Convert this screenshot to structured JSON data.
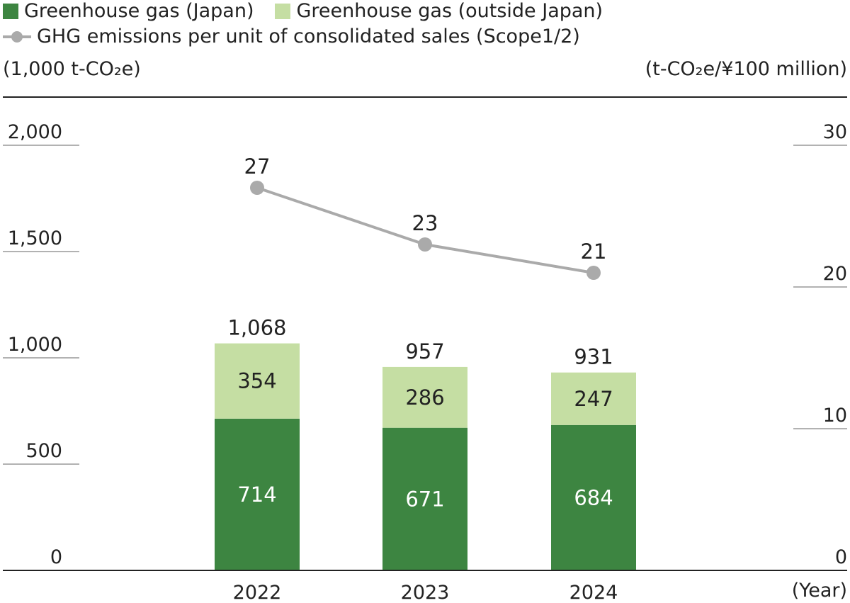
{
  "legend": {
    "japan_label": "Greenhouse gas (Japan)",
    "outside_label": "Greenhouse gas (outside Japan)",
    "line_label": "GHG emissions per unit of consolidated sales (Scope1/2)"
  },
  "units": {
    "left": "(1,000 t-CO₂e)",
    "right": "(t-CO₂e/¥100 million)"
  },
  "colors": {
    "japan": "#3d8541",
    "outside": "#c5dea3",
    "line": "#aaaaaa",
    "axis": "#222222",
    "grid": "#999999"
  },
  "chart_data": {
    "type": "bar",
    "categories": [
      "2022",
      "2023",
      "2024"
    ],
    "xlabel": "(Year)",
    "ylabel_left": "(1,000 t-CO₂e)",
    "ylabel_right": "(t-CO₂e/¥100 million)",
    "ylim_left": [
      0,
      2000
    ],
    "yticks_left": [
      0,
      500,
      1000,
      1500,
      2000
    ],
    "ylim_right": [
      0,
      30
    ],
    "yticks_right": [
      0,
      10,
      20,
      30
    ],
    "series": [
      {
        "name": "Greenhouse gas (Japan)",
        "type": "bar",
        "stack": "ghg",
        "axis": "left",
        "values": [
          714,
          671,
          684
        ]
      },
      {
        "name": "Greenhouse gas (outside Japan)",
        "type": "bar",
        "stack": "ghg",
        "axis": "left",
        "values": [
          354,
          286,
          247
        ]
      },
      {
        "name": "GHG emissions per unit of consolidated sales (Scope1/2)",
        "type": "line",
        "axis": "right",
        "values": [
          27,
          23,
          21
        ]
      }
    ],
    "totals": [
      1068,
      957,
      931
    ],
    "total_labels": [
      "1,068",
      "957",
      "931"
    ]
  }
}
